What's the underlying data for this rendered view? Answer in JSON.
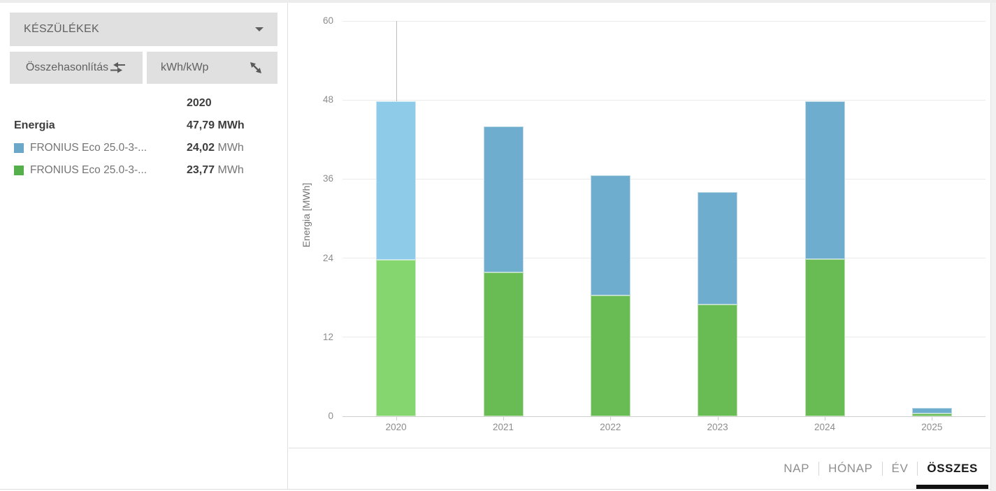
{
  "sidebar": {
    "devices_dropdown": {
      "label": "KÉSZÜLÉKEK"
    },
    "compare_button": {
      "label": "Összehasonlítás"
    },
    "unit_button": {
      "label": "kWh/kWp"
    },
    "legend": {
      "period_header": "2020",
      "rows": [
        {
          "label": "Energia",
          "value": "47,79",
          "unit": " MWh"
        },
        {
          "label": "FRONIUS Eco 25.0-3-...",
          "value": "24,02",
          "unit": " MWh",
          "color": "#6aa7c8"
        },
        {
          "label": "FRONIUS Eco 25.0-3-...",
          "value": "23,77",
          "unit": " MWh",
          "color": "#55b04c"
        }
      ]
    }
  },
  "colors": {
    "bar_blue": "#6fadce",
    "bar_blue_highlight": "#8dcbe8",
    "bar_green": "#68bc53",
    "bar_green_highlight": "#85d66f",
    "crosshair": "#bdbdbd"
  },
  "chart_data": {
    "type": "bar",
    "stacked": true,
    "title": "",
    "xlabel": "",
    "ylabel": "Energia [MWh]",
    "ylim": [
      0,
      60
    ],
    "yticks": [
      0,
      12,
      24,
      36,
      48,
      60
    ],
    "grid": "horizontal",
    "legend_position": "sidebar-left",
    "categories": [
      "2020",
      "2021",
      "2022",
      "2023",
      "2024",
      "2025"
    ],
    "series": [
      {
        "name": "FRONIUS Eco 25.0-3-... (green)",
        "color_key": "green",
        "values": [
          23.77,
          21.8,
          18.3,
          17.0,
          23.9,
          0.4
        ]
      },
      {
        "name": "FRONIUS Eco 25.0-3-... (blue)",
        "color_key": "blue",
        "values": [
          24.02,
          22.2,
          18.3,
          17.0,
          23.9,
          0.9
        ]
      }
    ],
    "totals": [
      47.79,
      44.0,
      36.6,
      34.0,
      47.8,
      1.3
    ],
    "highlighted_category": "2020",
    "crosshair_category": "2020"
  },
  "tabs": {
    "items": [
      {
        "label": "NAP"
      },
      {
        "label": "HÓNAP"
      },
      {
        "label": "ÉV"
      },
      {
        "label": "ÖSSZES"
      }
    ],
    "active": "ÖSSZES"
  }
}
